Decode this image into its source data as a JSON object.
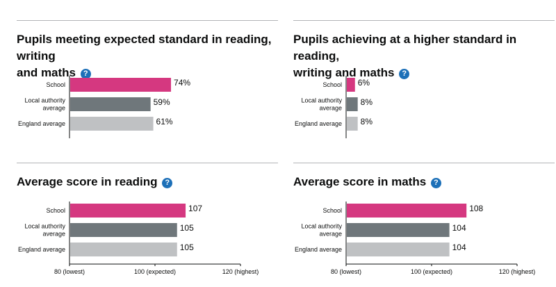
{
  "help_icon": "question-mark-help-icon",
  "colors": {
    "school": "#d53880",
    "local": "#6f777b",
    "england": "#bfc1c3",
    "help": "#1d70b8",
    "rule": "#b1b4b6",
    "axis": "#0b0c0c"
  },
  "chart_data": [
    {
      "type": "bar",
      "orientation": "horizontal",
      "title": "Pupils meeting expected standard in reading, writing and maths",
      "title_lines": [
        "Pupils meeting expected standard in reading, writing",
        "and maths"
      ],
      "categories": [
        "School",
        "Local authority average",
        "England average"
      ],
      "category_lines": [
        [
          "School"
        ],
        [
          "Local authority",
          "average"
        ],
        [
          "England average"
        ]
      ],
      "values": [
        74,
        59,
        61
      ],
      "value_labels": [
        "74%",
        "59%",
        "61%"
      ],
      "xlim": [
        0,
        100
      ]
    },
    {
      "type": "bar",
      "orientation": "horizontal",
      "title": "Pupils achieving at a higher standard in reading, writing and maths",
      "title_lines": [
        "Pupils achieving at a higher standard in reading,",
        "writing and maths"
      ],
      "categories": [
        "School",
        "Local authority average",
        "England average"
      ],
      "category_lines": [
        [
          "School"
        ],
        [
          "Local authority",
          "average"
        ],
        [
          "England average"
        ]
      ],
      "values": [
        6,
        8,
        8
      ],
      "value_labels": [
        "6%",
        "8%",
        "8%"
      ],
      "xlim": [
        0,
        100
      ]
    },
    {
      "type": "bar",
      "orientation": "horizontal",
      "title": "Average score in reading",
      "title_lines": [
        "Average score in reading"
      ],
      "categories": [
        "School",
        "Local authority average",
        "England average"
      ],
      "category_lines": [
        [
          "School"
        ],
        [
          "Local authority",
          "average"
        ],
        [
          "England average"
        ]
      ],
      "values": [
        107,
        105,
        105
      ],
      "value_labels": [
        "107",
        "105",
        "105"
      ],
      "xlim": [
        80,
        120
      ],
      "ticks": [
        80,
        100,
        120
      ],
      "tick_labels": [
        "80 (lowest)",
        "100 (expected)",
        "120 (highest)"
      ]
    },
    {
      "type": "bar",
      "orientation": "horizontal",
      "title": "Average score in maths",
      "title_lines": [
        "Average score in maths"
      ],
      "categories": [
        "School",
        "Local authority average",
        "England average"
      ],
      "category_lines": [
        [
          "School"
        ],
        [
          "Local authority",
          "average"
        ],
        [
          "England average"
        ]
      ],
      "values": [
        108,
        104,
        104
      ],
      "value_labels": [
        "108",
        "104",
        "104"
      ],
      "xlim": [
        80,
        120
      ],
      "ticks": [
        80,
        100,
        120
      ],
      "tick_labels": [
        "80 (lowest)",
        "100 (expected)",
        "120 (highest)"
      ]
    }
  ]
}
